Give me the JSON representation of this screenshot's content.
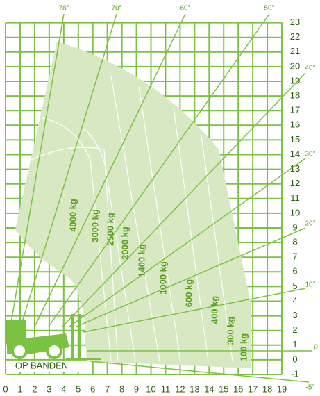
{
  "x_axis": {
    "labels": [
      "0",
      "1",
      "2",
      "3",
      "4",
      "5",
      "6",
      "7",
      "8",
      "9",
      "10",
      "11",
      "12",
      "13",
      "14",
      "15",
      "16",
      "17",
      "18",
      "19"
    ]
  },
  "y_axis": {
    "labels": [
      "-1",
      "0",
      "1",
      "2",
      "3",
      "4",
      "5",
      "6",
      "7",
      "8",
      "9",
      "10",
      "11",
      "12",
      "13",
      "14",
      "15",
      "16",
      "17",
      "18",
      "19",
      "20",
      "21",
      "22",
      "23"
    ]
  },
  "angles": [
    "78°",
    "70°",
    "60°",
    "50°",
    "40°",
    "30°",
    "20°",
    "10°",
    "0",
    "-5°"
  ],
  "capacities": [
    "4000 kg",
    "3000 kg",
    "2500 kg",
    "2000 kg",
    "1400 kg",
    "1000 kg",
    "600 kg",
    "400 kg",
    "300 kg",
    "100 kg"
  ],
  "caption": "OP BANDEN"
}
